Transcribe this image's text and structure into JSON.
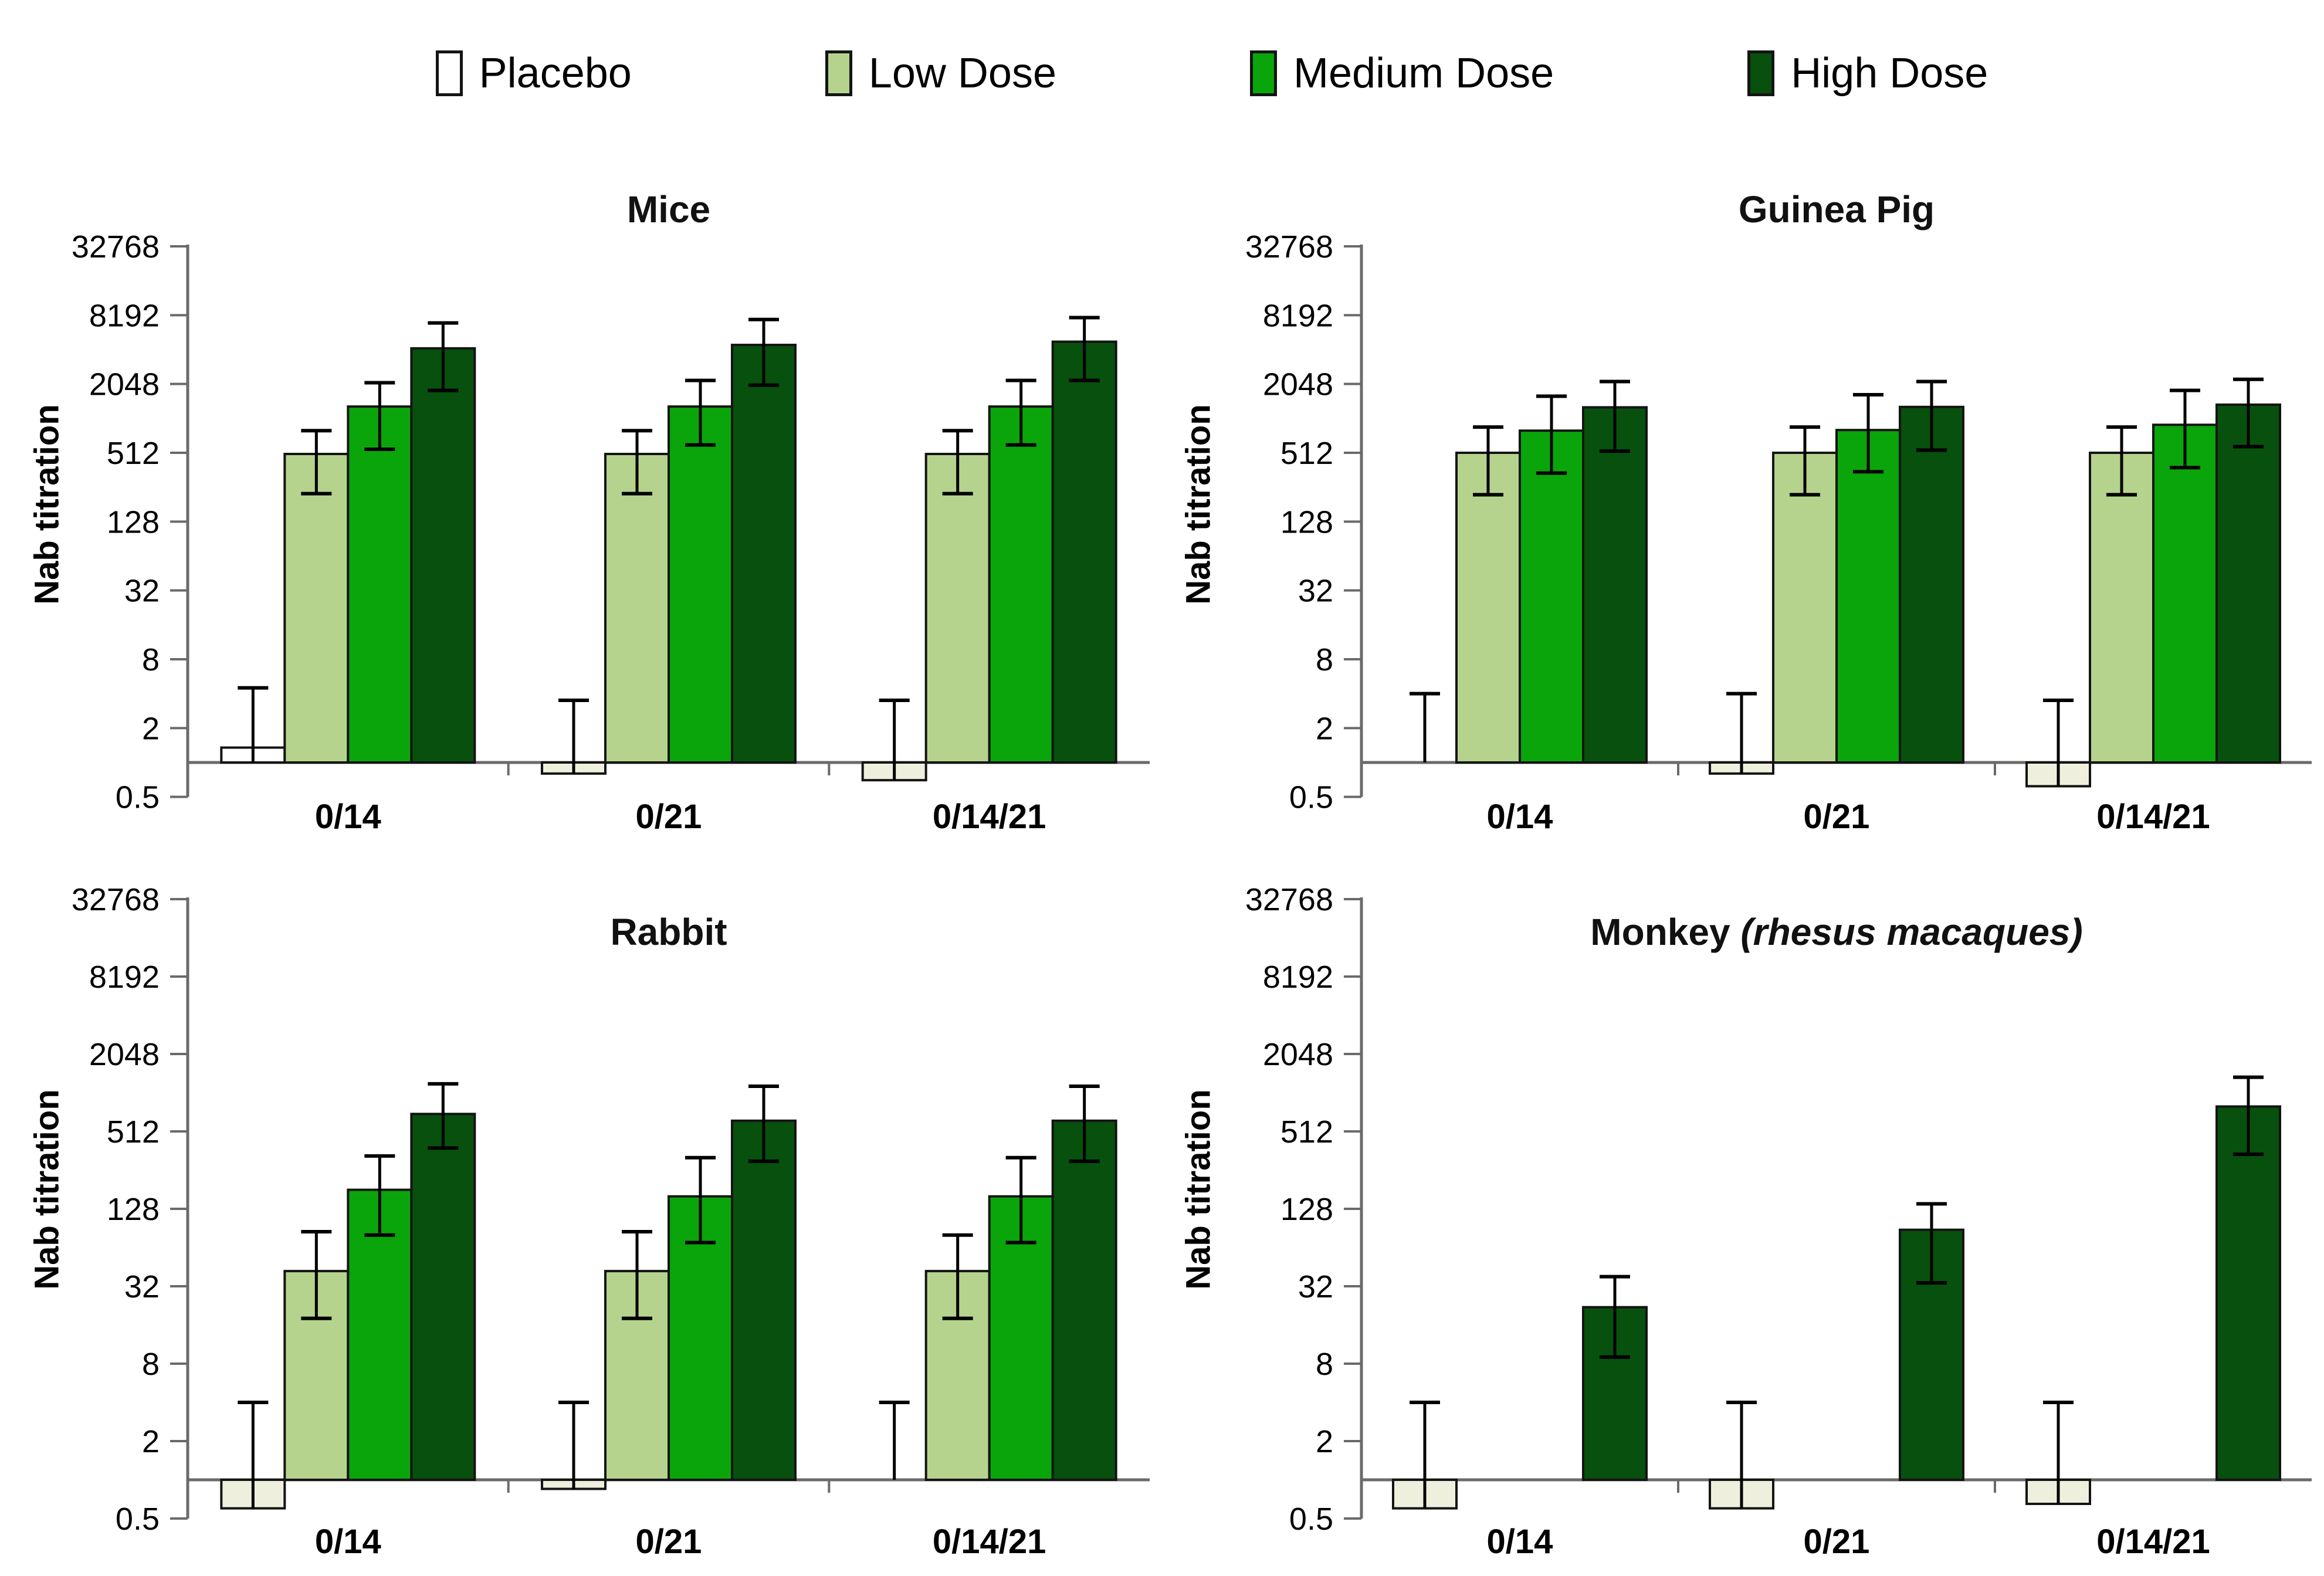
{
  "legend": {
    "items": [
      {
        "label": "Placebo",
        "color": "#ffffff"
      },
      {
        "label": "Low Dose",
        "color": "#b5d38d"
      },
      {
        "label": "Medium Dose",
        "color": "#0aa50a"
      },
      {
        "label": "High Dose",
        "color": "#07500d"
      }
    ]
  },
  "colors": {
    "placebo_below_fill": "#eef0dd",
    "bar_border": "#141414",
    "error_bar": "#000000",
    "axis": "#6a6a6a",
    "text": "#000000"
  },
  "chart_data": [
    {
      "type": "bar",
      "title": "Mice",
      "title_italic": "",
      "ylabel": "Nab titration",
      "scale": "log4",
      "ylim": [
        0.5,
        32768
      ],
      "baseline": 1,
      "yticks": [
        32768,
        8192,
        2048,
        512,
        128,
        32,
        8,
        2,
        0.5
      ],
      "categories": [
        "0/14",
        "0/21",
        "0/14/21"
      ],
      "series": [
        {
          "name": "Placebo",
          "values": [
            1.35,
            0.8,
            0.7
          ],
          "err_lo": [
            null,
            null,
            null
          ],
          "err_hi": [
            4.5,
            3.5,
            3.5
          ]
        },
        {
          "name": "Low Dose",
          "values": [
            500,
            500,
            500
          ],
          "err_lo": [
            225,
            225,
            225
          ],
          "err_hi": [
            800,
            800,
            800
          ]
        },
        {
          "name": "Medium Dose",
          "values": [
            1300,
            1300,
            1300
          ],
          "err_lo": [
            550,
            600,
            600
          ],
          "err_hi": [
            2100,
            2200,
            2200
          ]
        },
        {
          "name": "High Dose",
          "values": [
            4200,
            4500,
            4800
          ],
          "err_lo": [
            1800,
            2000,
            2200
          ],
          "err_hi": [
            7000,
            7500,
            7800
          ]
        }
      ]
    },
    {
      "type": "bar",
      "title": "Guinea Pig",
      "title_italic": "",
      "ylabel": "Nab titration",
      "scale": "log4",
      "ylim": [
        0.5,
        32768
      ],
      "baseline": 1,
      "yticks": [
        32768,
        8192,
        2048,
        512,
        128,
        32,
        8,
        2,
        0.5
      ],
      "categories": [
        "0/14",
        "0/21",
        "0/14/21"
      ],
      "series": [
        {
          "name": "Placebo",
          "values": [
            1.0,
            0.8,
            0.62
          ],
          "err_lo": [
            null,
            null,
            null
          ],
          "err_hi": [
            4,
            4,
            3.5
          ]
        },
        {
          "name": "Low Dose",
          "values": [
            512,
            512,
            512
          ],
          "err_lo": [
            220,
            220,
            220
          ],
          "err_hi": [
            860,
            860,
            860
          ]
        },
        {
          "name": "Medium Dose",
          "values": [
            800,
            810,
            900
          ],
          "err_lo": [
            340,
            350,
            380
          ],
          "err_hi": [
            1600,
            1650,
            1800
          ]
        },
        {
          "name": "High Dose",
          "values": [
            1280,
            1290,
            1350
          ],
          "err_lo": [
            530,
            540,
            580
          ],
          "err_hi": [
            2150,
            2150,
            2250
          ]
        }
      ]
    },
    {
      "type": "bar",
      "title": "Rabbit",
      "title_italic": "",
      "ylabel": "Nab titration",
      "scale": "log4",
      "ylim": [
        0.5,
        32768
      ],
      "baseline": 1,
      "yticks": [
        32768,
        8192,
        2048,
        512,
        128,
        32,
        8,
        2,
        0.5
      ],
      "categories": [
        "0/14",
        "0/21",
        "0/14/21"
      ],
      "series": [
        {
          "name": "Placebo",
          "values": [
            0.6,
            0.85,
            1.0
          ],
          "err_lo": [
            null,
            null,
            null
          ],
          "err_hi": [
            4,
            4,
            4
          ]
        },
        {
          "name": "Low Dose",
          "values": [
            42,
            42,
            42
          ],
          "err_lo": [
            18,
            18,
            18
          ],
          "err_hi": [
            85,
            85,
            80
          ]
        },
        {
          "name": "Medium Dose",
          "values": [
            180,
            160,
            160
          ],
          "err_lo": [
            80,
            70,
            70
          ],
          "err_hi": [
            330,
            320,
            320
          ]
        },
        {
          "name": "High Dose",
          "values": [
            700,
            620,
            620
          ],
          "err_lo": [
            380,
            300,
            300
          ],
          "err_hi": [
            1200,
            1150,
            1150
          ]
        }
      ]
    },
    {
      "type": "bar",
      "title": "Monkey ",
      "title_italic": "(rhesus macaques)",
      "ylabel": "Nab titration",
      "scale": "log4",
      "ylim": [
        0.5,
        32768
      ],
      "baseline": 1,
      "yticks": [
        32768,
        8192,
        2048,
        512,
        128,
        32,
        8,
        2,
        0.5
      ],
      "categories": [
        "0/14",
        "0/21",
        "0/14/21"
      ],
      "series": [
        {
          "name": "Placebo",
          "values": [
            0.6,
            0.6,
            0.65
          ],
          "err_lo": [
            null,
            null,
            null
          ],
          "err_hi": [
            4,
            4,
            4
          ]
        },
        {
          "name": "Low Dose",
          "values": [
            null,
            null,
            null
          ],
          "err_lo": [
            null,
            null,
            null
          ],
          "err_hi": [
            null,
            null,
            null
          ]
        },
        {
          "name": "Medium Dose",
          "values": [
            null,
            null,
            null
          ],
          "err_lo": [
            null,
            null,
            null
          ],
          "err_hi": [
            null,
            null,
            null
          ]
        },
        {
          "name": "High Dose",
          "values": [
            22,
            88,
            800
          ],
          "err_lo": [
            9,
            34,
            340
          ],
          "err_hi": [
            38,
            140,
            1350
          ]
        }
      ]
    }
  ]
}
